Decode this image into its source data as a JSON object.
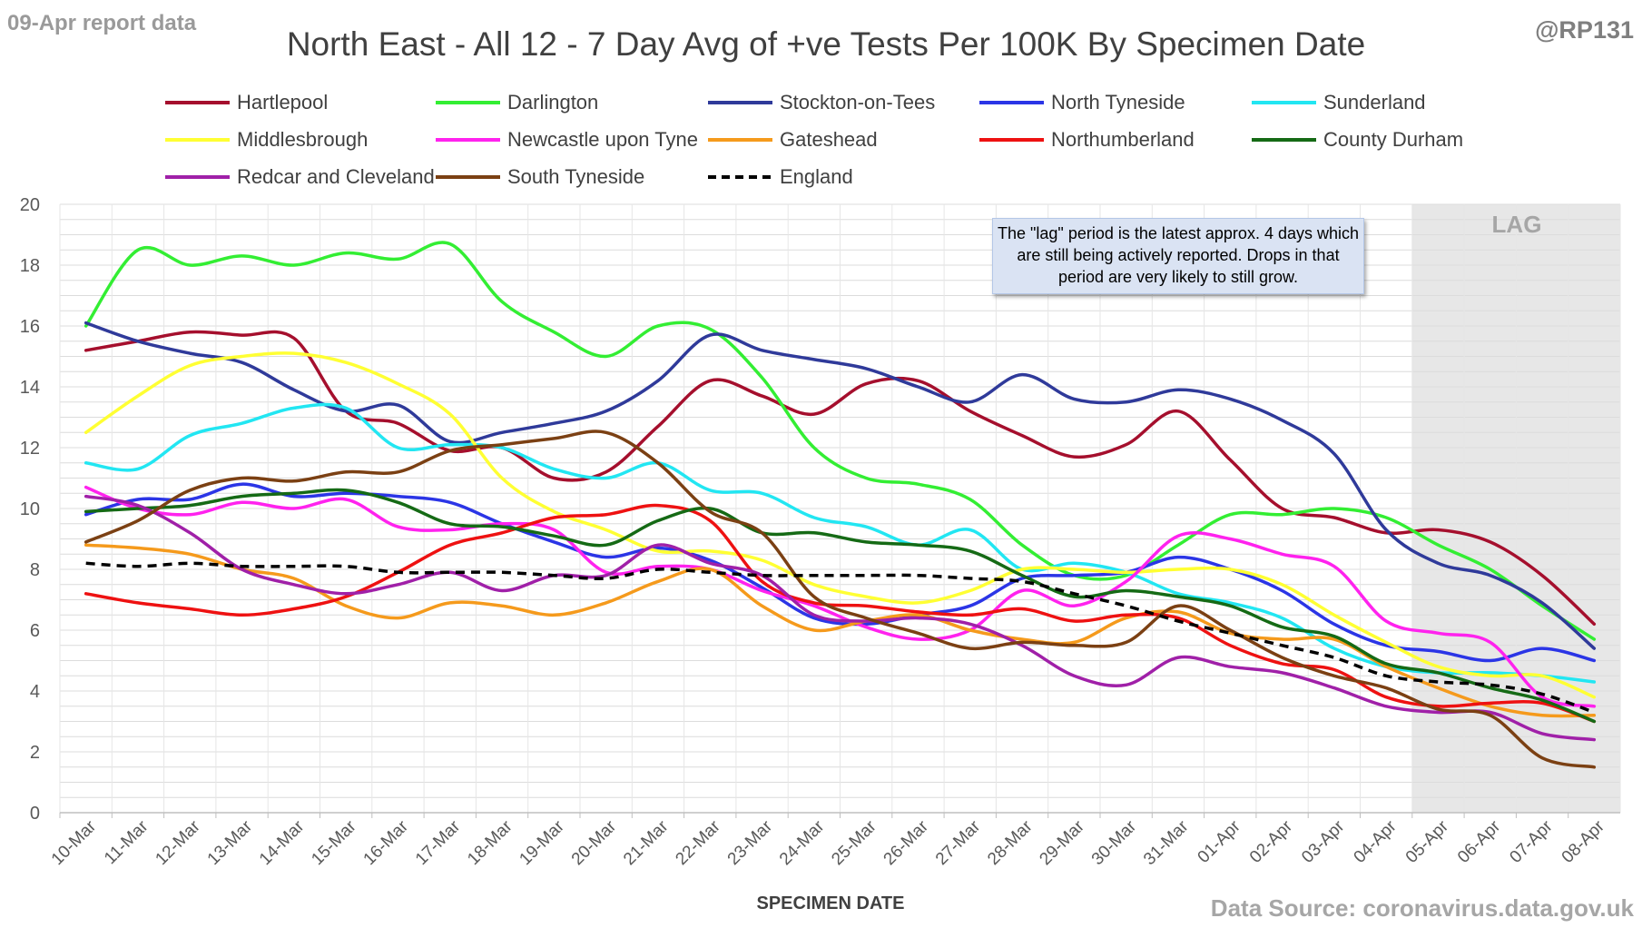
{
  "header": {
    "report_label": "09-Apr report data",
    "handle": "@RP131",
    "title": "North East - All 12 - 7 Day Avg of +ve Tests Per 100K By Specimen Date",
    "source": "Data Source: coronavirus.data.gov.uk"
  },
  "annotation": {
    "text": "The \"lag\" period is the latest approx. 4 days which are still being actively reported. Drops in that period are very likely to still grow.",
    "lag_label": "LAG"
  },
  "chart_data": {
    "type": "line",
    "title": "North East - All 12 - 7 Day Avg of +ve Tests Per 100K By Specimen Date",
    "xlabel": "SPECIMEN DATE",
    "ylabel": "",
    "ylim": [
      0,
      20
    ],
    "yticks": [
      0,
      2,
      4,
      6,
      8,
      10,
      12,
      14,
      16,
      18,
      20
    ],
    "grid": true,
    "legend_position": "top",
    "lag_start_index": 26,
    "x": [
      "10-Mar",
      "11-Mar",
      "12-Mar",
      "13-Mar",
      "14-Mar",
      "15-Mar",
      "16-Mar",
      "17-Mar",
      "18-Mar",
      "19-Mar",
      "20-Mar",
      "21-Mar",
      "22-Mar",
      "23-Mar",
      "24-Mar",
      "25-Mar",
      "26-Mar",
      "27-Mar",
      "28-Mar",
      "29-Mar",
      "30-Mar",
      "31-Mar",
      "01-Apr",
      "02-Apr",
      "03-Apr",
      "04-Apr",
      "05-Apr",
      "06-Apr",
      "07-Apr",
      "08-Apr"
    ],
    "series": [
      {
        "name": "Hartlepool",
        "color": "#a50f2d",
        "dashed": false,
        "values": [
          15.2,
          15.5,
          15.8,
          15.7,
          15.6,
          13.2,
          12.8,
          11.9,
          12.0,
          11.0,
          11.2,
          12.7,
          14.2,
          13.7,
          13.1,
          14.1,
          14.2,
          13.2,
          12.4,
          11.7,
          12.1,
          13.2,
          11.6,
          10.0,
          9.7,
          9.2,
          9.3,
          8.9,
          7.8,
          6.2
        ]
      },
      {
        "name": "Darlington",
        "color": "#33ee33",
        "dashed": false,
        "values": [
          16.0,
          18.5,
          18.0,
          18.3,
          18.0,
          18.4,
          18.2,
          18.7,
          16.8,
          15.8,
          15.0,
          16.0,
          15.9,
          14.3,
          12.0,
          11.0,
          10.8,
          10.3,
          8.8,
          7.8,
          7.8,
          8.8,
          9.8,
          9.8,
          10.0,
          9.7,
          8.8,
          8.0,
          6.8,
          5.7
        ]
      },
      {
        "name": "Stockton-on-Tees",
        "color": "#2f3a9a",
        "dashed": false,
        "values": [
          16.1,
          15.5,
          15.1,
          14.8,
          13.9,
          13.2,
          13.4,
          12.2,
          12.5,
          12.8,
          13.2,
          14.2,
          15.7,
          15.2,
          14.9,
          14.6,
          14.0,
          13.5,
          14.4,
          13.6,
          13.5,
          13.9,
          13.6,
          12.9,
          11.8,
          9.3,
          8.2,
          7.8,
          6.9,
          5.4
        ]
      },
      {
        "name": "North Tyneside",
        "color": "#2b35e6",
        "dashed": false,
        "values": [
          9.8,
          10.3,
          10.3,
          10.8,
          10.4,
          10.5,
          10.4,
          10.2,
          9.5,
          8.9,
          8.4,
          8.7,
          8.3,
          7.4,
          6.4,
          6.2,
          6.5,
          6.8,
          7.7,
          7.8,
          7.9,
          8.4,
          8.0,
          7.3,
          6.2,
          5.5,
          5.3,
          5.0,
          5.4,
          5.0
        ]
      },
      {
        "name": "Sunderland",
        "color": "#22e6f2",
        "dashed": false,
        "values": [
          11.5,
          11.3,
          12.4,
          12.8,
          13.3,
          13.3,
          12.0,
          12.1,
          12.0,
          11.3,
          11.0,
          11.5,
          10.6,
          10.5,
          9.7,
          9.4,
          8.8,
          9.3,
          8.0,
          8.2,
          7.9,
          7.2,
          6.9,
          6.4,
          5.4,
          4.8,
          4.6,
          4.6,
          4.5,
          4.3
        ]
      },
      {
        "name": "Middlesbrough",
        "color": "#ffff33",
        "dashed": false,
        "values": [
          12.5,
          13.7,
          14.7,
          15.0,
          15.1,
          14.8,
          14.1,
          13.1,
          11.0,
          9.9,
          9.3,
          8.6,
          8.6,
          8.3,
          7.5,
          7.1,
          6.9,
          7.3,
          8.0,
          8.0,
          7.9,
          8.0,
          8.0,
          7.5,
          6.5,
          5.6,
          4.8,
          4.5,
          4.5,
          3.8
        ]
      },
      {
        "name": "Newcastle upon Tyne",
        "color": "#ff22ee",
        "dashed": false,
        "values": [
          10.7,
          10.0,
          9.8,
          10.2,
          10.0,
          10.3,
          9.4,
          9.3,
          9.5,
          9.3,
          7.9,
          8.1,
          8.0,
          7.3,
          6.8,
          6.1,
          5.7,
          6.0,
          7.3,
          6.8,
          7.6,
          9.1,
          9.0,
          8.5,
          8.1,
          6.3,
          5.9,
          5.6,
          3.8,
          3.5
        ]
      },
      {
        "name": "Gateshead",
        "color": "#f59a1c",
        "dashed": false,
        "values": [
          8.8,
          8.7,
          8.5,
          8.0,
          7.7,
          6.8,
          6.4,
          6.9,
          6.8,
          6.5,
          6.9,
          7.6,
          8.0,
          6.8,
          6.0,
          6.3,
          6.5,
          6.0,
          5.7,
          5.6,
          6.4,
          6.6,
          5.9,
          5.7,
          5.7,
          4.8,
          4.1,
          3.5,
          3.2,
          3.2
        ]
      },
      {
        "name": "Northumberland",
        "color": "#ee1111",
        "dashed": false,
        "values": [
          7.2,
          6.9,
          6.7,
          6.5,
          6.7,
          7.1,
          7.9,
          8.8,
          9.2,
          9.7,
          9.8,
          10.1,
          9.6,
          7.6,
          6.9,
          6.8,
          6.6,
          6.5,
          6.7,
          6.3,
          6.5,
          6.4,
          5.5,
          4.9,
          4.7,
          3.8,
          3.5,
          3.6,
          3.6,
          3.0
        ]
      },
      {
        "name": "County Durham",
        "color": "#156a15",
        "dashed": false,
        "values": [
          9.9,
          10.0,
          10.1,
          10.4,
          10.5,
          10.6,
          10.2,
          9.5,
          9.4,
          9.1,
          8.8,
          9.6,
          10.0,
          9.2,
          9.2,
          8.9,
          8.8,
          8.6,
          7.8,
          7.1,
          7.3,
          7.1,
          6.8,
          6.1,
          5.8,
          4.9,
          4.6,
          4.1,
          3.7,
          3.0
        ]
      },
      {
        "name": "Redcar and Cleveland",
        "color": "#a020a8",
        "dashed": false,
        "values": [
          10.4,
          10.1,
          9.2,
          8.0,
          7.5,
          7.2,
          7.5,
          7.9,
          7.3,
          7.8,
          7.8,
          8.8,
          8.2,
          7.8,
          6.5,
          6.3,
          6.4,
          6.2,
          5.5,
          4.5,
          4.2,
          5.1,
          4.8,
          4.6,
          4.1,
          3.5,
          3.3,
          3.3,
          2.6,
          2.4
        ]
      },
      {
        "name": "South Tyneside",
        "color": "#7b4013",
        "dashed": false,
        "values": [
          8.9,
          9.6,
          10.6,
          11.0,
          10.9,
          11.2,
          11.2,
          11.9,
          12.1,
          12.3,
          12.5,
          11.5,
          9.9,
          9.2,
          7.1,
          6.4,
          5.9,
          5.4,
          5.6,
          5.5,
          5.6,
          6.8,
          6.0,
          5.1,
          4.5,
          4.1,
          3.4,
          3.2,
          1.8,
          1.5
        ]
      },
      {
        "name": "England",
        "color": "#000000",
        "dashed": true,
        "values": [
          8.2,
          8.1,
          8.2,
          8.1,
          8.1,
          8.1,
          7.9,
          7.9,
          7.9,
          7.8,
          7.7,
          8.0,
          7.9,
          7.8,
          7.8,
          7.8,
          7.8,
          7.7,
          7.6,
          7.2,
          6.8,
          6.3,
          5.9,
          5.5,
          5.1,
          4.5,
          4.3,
          4.2,
          3.9,
          3.3
        ]
      }
    ]
  }
}
